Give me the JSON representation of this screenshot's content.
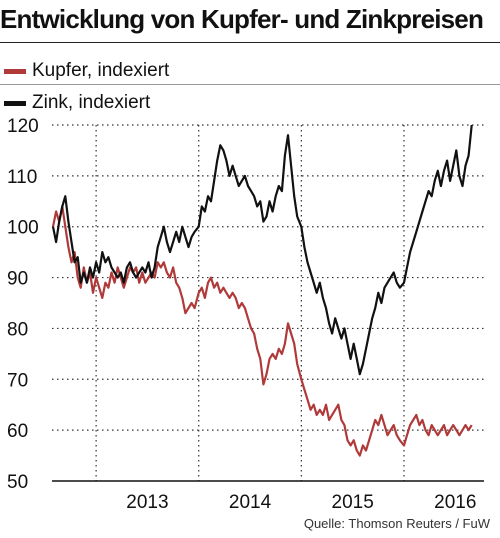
{
  "header": {
    "title": "Entwicklung von Kupfer- und Zinkpreisen"
  },
  "legend": [
    {
      "label": "Kupfer, indexiert",
      "color": "#b03a3a"
    },
    {
      "label": "Zink, indexiert",
      "color": "#111111"
    }
  ],
  "source": "Quelle: Thomson Reuters / FuW",
  "chart_data": {
    "type": "line",
    "ylim": [
      50,
      120
    ],
    "yticks": [
      50,
      60,
      70,
      80,
      90,
      100,
      110,
      120
    ],
    "xlim": [
      2012.57,
      2016.78
    ],
    "year_labels": [
      {
        "label": "2013",
        "x": 2013.5
      },
      {
        "label": "2014",
        "x": 2014.5
      },
      {
        "label": "2015",
        "x": 2015.5
      },
      {
        "label": "2016",
        "x": 2016.5
      }
    ],
    "year_boundaries": [
      2013.0,
      2014.0,
      2015.0,
      2016.0
    ],
    "grid": true,
    "series": [
      {
        "name": "Kupfer, indexiert",
        "color": "#b03a3a",
        "points": [
          [
            2012.58,
            100
          ],
          [
            2012.61,
            103
          ],
          [
            2012.64,
            101
          ],
          [
            2012.67,
            104
          ],
          [
            2012.7,
            100
          ],
          [
            2012.73,
            96
          ],
          [
            2012.76,
            93
          ],
          [
            2012.79,
            95
          ],
          [
            2012.82,
            90
          ],
          [
            2012.85,
            88
          ],
          [
            2012.88,
            92
          ],
          [
            2012.91,
            89
          ],
          [
            2012.94,
            91
          ],
          [
            2012.97,
            87
          ],
          [
            2013.0,
            90
          ],
          [
            2013.03,
            88
          ],
          [
            2013.06,
            86
          ],
          [
            2013.09,
            89
          ],
          [
            2013.12,
            88
          ],
          [
            2013.15,
            91
          ],
          [
            2013.18,
            89
          ],
          [
            2013.21,
            92
          ],
          [
            2013.24,
            90
          ],
          [
            2013.27,
            88
          ],
          [
            2013.3,
            90
          ],
          [
            2013.33,
            92
          ],
          [
            2013.36,
            91
          ],
          [
            2013.39,
            92
          ],
          [
            2013.42,
            89
          ],
          [
            2013.45,
            91
          ],
          [
            2013.48,
            89
          ],
          [
            2013.51,
            90
          ],
          [
            2013.54,
            91
          ],
          [
            2013.57,
            90
          ],
          [
            2013.6,
            93
          ],
          [
            2013.63,
            92
          ],
          [
            2013.66,
            93
          ],
          [
            2013.69,
            91
          ],
          [
            2013.72,
            90
          ],
          [
            2013.75,
            92
          ],
          [
            2013.78,
            89
          ],
          [
            2013.81,
            88
          ],
          [
            2013.84,
            86
          ],
          [
            2013.87,
            83
          ],
          [
            2013.9,
            84
          ],
          [
            2013.93,
            85
          ],
          [
            2013.96,
            84
          ],
          [
            2014.0,
            87
          ],
          [
            2014.03,
            88
          ],
          [
            2014.06,
            86
          ],
          [
            2014.09,
            89
          ],
          [
            2014.12,
            90
          ],
          [
            2014.15,
            88
          ],
          [
            2014.18,
            89
          ],
          [
            2014.21,
            87
          ],
          [
            2014.24,
            88
          ],
          [
            2014.27,
            87
          ],
          [
            2014.3,
            86
          ],
          [
            2014.33,
            87
          ],
          [
            2014.36,
            86
          ],
          [
            2014.39,
            84
          ],
          [
            2014.42,
            85
          ],
          [
            2014.45,
            84
          ],
          [
            2014.48,
            82
          ],
          [
            2014.51,
            80
          ],
          [
            2014.54,
            79
          ],
          [
            2014.57,
            76
          ],
          [
            2014.6,
            74
          ],
          [
            2014.63,
            69
          ],
          [
            2014.66,
            71
          ],
          [
            2014.69,
            74
          ],
          [
            2014.72,
            75
          ],
          [
            2014.75,
            74
          ],
          [
            2014.78,
            76
          ],
          [
            2014.81,
            75
          ],
          [
            2014.84,
            77
          ],
          [
            2014.87,
            81
          ],
          [
            2014.9,
            79
          ],
          [
            2014.93,
            77
          ],
          [
            2014.96,
            73
          ],
          [
            2015.0,
            70
          ],
          [
            2015.03,
            68
          ],
          [
            2015.06,
            66
          ],
          [
            2015.09,
            64
          ],
          [
            2015.12,
            65
          ],
          [
            2015.15,
            63
          ],
          [
            2015.18,
            64
          ],
          [
            2015.21,
            63
          ],
          [
            2015.24,
            65
          ],
          [
            2015.27,
            62
          ],
          [
            2015.3,
            63
          ],
          [
            2015.33,
            64
          ],
          [
            2015.36,
            65
          ],
          [
            2015.39,
            62
          ],
          [
            2015.42,
            61
          ],
          [
            2015.45,
            58
          ],
          [
            2015.48,
            57
          ],
          [
            2015.51,
            58
          ],
          [
            2015.54,
            56
          ],
          [
            2015.57,
            55
          ],
          [
            2015.6,
            57
          ],
          [
            2015.63,
            56
          ],
          [
            2015.66,
            58
          ],
          [
            2015.69,
            60
          ],
          [
            2015.72,
            62
          ],
          [
            2015.75,
            61
          ],
          [
            2015.78,
            63
          ],
          [
            2015.81,
            61
          ],
          [
            2015.84,
            59
          ],
          [
            2015.87,
            60
          ],
          [
            2015.9,
            61
          ],
          [
            2015.93,
            59
          ],
          [
            2015.96,
            58
          ],
          [
            2016.0,
            57
          ],
          [
            2016.03,
            59
          ],
          [
            2016.06,
            61
          ],
          [
            2016.09,
            62
          ],
          [
            2016.12,
            63
          ],
          [
            2016.15,
            61
          ],
          [
            2016.18,
            62
          ],
          [
            2016.21,
            60
          ],
          [
            2016.24,
            59
          ],
          [
            2016.27,
            61
          ],
          [
            2016.3,
            60
          ],
          [
            2016.33,
            59
          ],
          [
            2016.36,
            60
          ],
          [
            2016.39,
            61
          ],
          [
            2016.42,
            59
          ],
          [
            2016.45,
            60
          ],
          [
            2016.48,
            61
          ],
          [
            2016.51,
            60
          ],
          [
            2016.54,
            59
          ],
          [
            2016.57,
            60
          ],
          [
            2016.6,
            61
          ],
          [
            2016.63,
            60
          ],
          [
            2016.66,
            61
          ]
        ]
      },
      {
        "name": "Zink, indexiert",
        "color": "#111111",
        "points": [
          [
            2012.58,
            100
          ],
          [
            2012.61,
            97
          ],
          [
            2012.64,
            101
          ],
          [
            2012.67,
            104
          ],
          [
            2012.7,
            106
          ],
          [
            2012.73,
            101
          ],
          [
            2012.76,
            97
          ],
          [
            2012.79,
            93
          ],
          [
            2012.82,
            94
          ],
          [
            2012.85,
            89
          ],
          [
            2012.88,
            91
          ],
          [
            2012.91,
            89
          ],
          [
            2012.94,
            92
          ],
          [
            2012.97,
            90
          ],
          [
            2013.0,
            93
          ],
          [
            2013.03,
            91
          ],
          [
            2013.06,
            95
          ],
          [
            2013.09,
            93
          ],
          [
            2013.12,
            94
          ],
          [
            2013.15,
            92
          ],
          [
            2013.18,
            91
          ],
          [
            2013.21,
            90
          ],
          [
            2013.24,
            91
          ],
          [
            2013.27,
            89
          ],
          [
            2013.3,
            92
          ],
          [
            2013.33,
            93
          ],
          [
            2013.36,
            91
          ],
          [
            2013.39,
            90
          ],
          [
            2013.42,
            91
          ],
          [
            2013.45,
            92
          ],
          [
            2013.48,
            91
          ],
          [
            2013.51,
            93
          ],
          [
            2013.54,
            90
          ],
          [
            2013.57,
            92
          ],
          [
            2013.6,
            96
          ],
          [
            2013.63,
            98
          ],
          [
            2013.66,
            100
          ],
          [
            2013.69,
            97
          ],
          [
            2013.72,
            95
          ],
          [
            2013.75,
            97
          ],
          [
            2013.78,
            99
          ],
          [
            2013.81,
            97
          ],
          [
            2013.84,
            100
          ],
          [
            2013.87,
            98
          ],
          [
            2013.9,
            96
          ],
          [
            2013.93,
            98
          ],
          [
            2013.96,
            99
          ],
          [
            2014.0,
            100
          ],
          [
            2014.03,
            104
          ],
          [
            2014.06,
            103
          ],
          [
            2014.09,
            106
          ],
          [
            2014.12,
            105
          ],
          [
            2014.15,
            109
          ],
          [
            2014.18,
            113
          ],
          [
            2014.21,
            116
          ],
          [
            2014.24,
            115
          ],
          [
            2014.27,
            113
          ],
          [
            2014.3,
            110
          ],
          [
            2014.33,
            112
          ],
          [
            2014.36,
            110
          ],
          [
            2014.39,
            108
          ],
          [
            2014.42,
            109
          ],
          [
            2014.45,
            110
          ],
          [
            2014.48,
            108
          ],
          [
            2014.51,
            107
          ],
          [
            2014.54,
            106
          ],
          [
            2014.57,
            104
          ],
          [
            2014.6,
            105
          ],
          [
            2014.63,
            101
          ],
          [
            2014.66,
            102
          ],
          [
            2014.69,
            105
          ],
          [
            2014.72,
            103
          ],
          [
            2014.75,
            106
          ],
          [
            2014.78,
            108
          ],
          [
            2014.81,
            107
          ],
          [
            2014.84,
            114
          ],
          [
            2014.87,
            118
          ],
          [
            2014.9,
            112
          ],
          [
            2014.93,
            106
          ],
          [
            2014.96,
            102
          ],
          [
            2015.0,
            100
          ],
          [
            2015.03,
            96
          ],
          [
            2015.06,
            93
          ],
          [
            2015.09,
            91
          ],
          [
            2015.12,
            89
          ],
          [
            2015.15,
            87
          ],
          [
            2015.18,
            89
          ],
          [
            2015.21,
            86
          ],
          [
            2015.24,
            84
          ],
          [
            2015.27,
            81
          ],
          [
            2015.3,
            79
          ],
          [
            2015.33,
            82
          ],
          [
            2015.36,
            80
          ],
          [
            2015.39,
            78
          ],
          [
            2015.42,
            80
          ],
          [
            2015.45,
            77
          ],
          [
            2015.48,
            74
          ],
          [
            2015.51,
            77
          ],
          [
            2015.54,
            74
          ],
          [
            2015.57,
            71
          ],
          [
            2015.6,
            73
          ],
          [
            2015.63,
            76
          ],
          [
            2015.66,
            79
          ],
          [
            2015.69,
            82
          ],
          [
            2015.72,
            84
          ],
          [
            2015.75,
            87
          ],
          [
            2015.78,
            85
          ],
          [
            2015.81,
            88
          ],
          [
            2015.84,
            89
          ],
          [
            2015.87,
            90
          ],
          [
            2015.9,
            91
          ],
          [
            2015.93,
            89
          ],
          [
            2015.96,
            88
          ],
          [
            2016.0,
            89
          ],
          [
            2016.03,
            92
          ],
          [
            2016.06,
            95
          ],
          [
            2016.09,
            97
          ],
          [
            2016.12,
            99
          ],
          [
            2016.15,
            101
          ],
          [
            2016.18,
            103
          ],
          [
            2016.21,
            105
          ],
          [
            2016.24,
            107
          ],
          [
            2016.27,
            106
          ],
          [
            2016.3,
            109
          ],
          [
            2016.33,
            111
          ],
          [
            2016.36,
            108
          ],
          [
            2016.39,
            111
          ],
          [
            2016.42,
            113
          ],
          [
            2016.45,
            109
          ],
          [
            2016.48,
            112
          ],
          [
            2016.51,
            115
          ],
          [
            2016.54,
            110
          ],
          [
            2016.57,
            108
          ],
          [
            2016.6,
            112
          ],
          [
            2016.63,
            114
          ],
          [
            2016.66,
            120
          ]
        ]
      }
    ]
  }
}
